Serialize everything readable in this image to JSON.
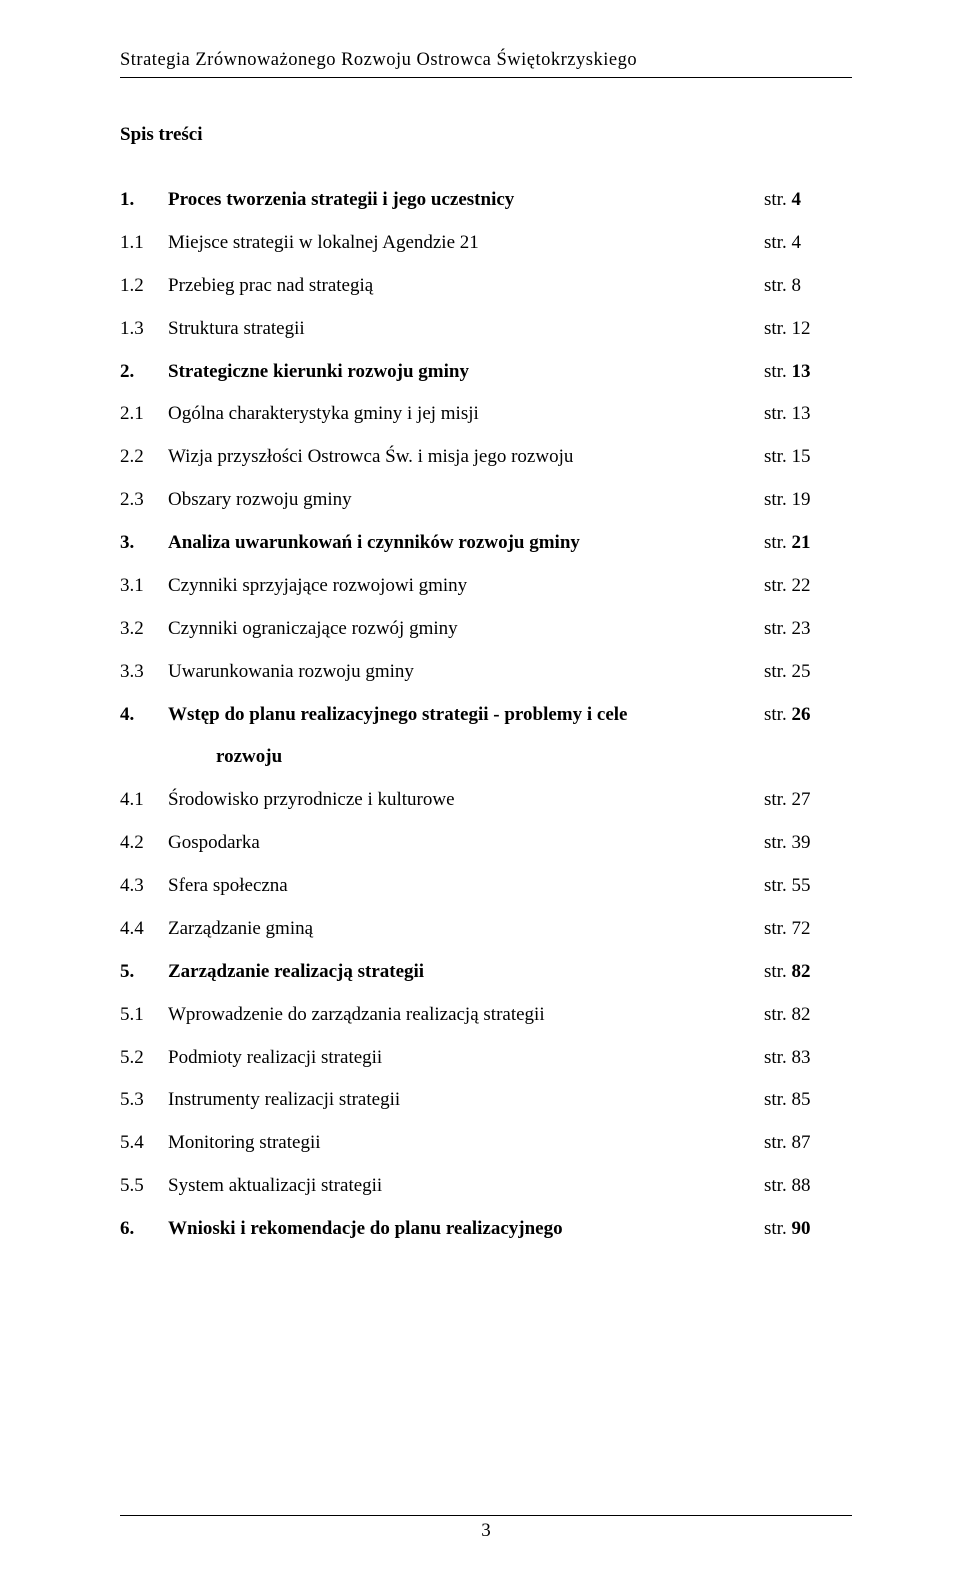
{
  "header": "Strategia Zrównoważonego Rozwoju Ostrowca Świętokrzyskiego",
  "toc_title": "Spis treści",
  "page_prefix": "str.",
  "footer_page": "3",
  "toc": [
    {
      "num": "1.",
      "title": "Proces tworzenia strategii i jego uczestnicy",
      "page": "4",
      "bold": true
    },
    {
      "num": "1.1",
      "title": "Miejsce strategii w lokalnej Agendzie 21",
      "page": "4",
      "bold": false
    },
    {
      "num": "1.2",
      "title": "Przebieg prac nad strategią",
      "page": "8",
      "bold": false
    },
    {
      "num": "1.3",
      "title": "Struktura strategii",
      "page": "12",
      "bold": false
    },
    {
      "num": "2.",
      "title": "Strategiczne kierunki rozwoju gminy",
      "page": "13",
      "bold": true
    },
    {
      "num": "2.1",
      "title": "Ogólna charakterystyka gminy i jej misji",
      "page": "13",
      "bold": false
    },
    {
      "num": "2.2",
      "title": "Wizja przyszłości Ostrowca Św. i misja jego rozwoju",
      "page": "15",
      "bold": false
    },
    {
      "num": "2.3",
      "title": "Obszary rozwoju gminy",
      "page": "19",
      "bold": false
    },
    {
      "num": "3.",
      "title": "Analiza uwarunkowań i czynników rozwoju gminy",
      "page": "21",
      "bold": true
    },
    {
      "num": "3.1",
      "title": "Czynniki sprzyjające rozwojowi gminy",
      "page": "22",
      "bold": false
    },
    {
      "num": "3.2",
      "title": "Czynniki ograniczające rozwój gminy",
      "page": "23",
      "bold": false
    },
    {
      "num": "3.3",
      "title": "Uwarunkowania rozwoju gminy",
      "page": "25",
      "bold": false
    },
    {
      "num": "4.",
      "title": "Wstęp do planu realizacyjnego strategii - problemy i cele",
      "page": "26",
      "bold": true,
      "cont": "rozwoju"
    },
    {
      "num": "4.1",
      "title": "Środowisko przyrodnicze i kulturowe",
      "page": "27",
      "bold": false
    },
    {
      "num": "4.2",
      "title": "Gospodarka",
      "page": "39",
      "bold": false
    },
    {
      "num": "4.3",
      "title": "Sfera społeczna",
      "page": "55",
      "bold": false
    },
    {
      "num": "4.4",
      "title": "Zarządzanie gminą",
      "page": "72",
      "bold": false
    },
    {
      "num": "5.",
      "title": "Zarządzanie realizacją strategii",
      "page": "82",
      "bold": true
    },
    {
      "num": "5.1",
      "title": "Wprowadzenie do zarządzania realizacją strategii",
      "page": "82",
      "bold": false
    },
    {
      "num": "5.2",
      "title": "Podmioty realizacji strategii",
      "page": "83",
      "bold": false
    },
    {
      "num": "5.3",
      "title": "Instrumenty realizacji strategii",
      "page": "85",
      "bold": false
    },
    {
      "num": "5.4",
      "title": "Monitoring strategii",
      "page": "87",
      "bold": false
    },
    {
      "num": "5.5",
      "title": "System aktualizacji strategii",
      "page": "88",
      "bold": false
    },
    {
      "num": "6.",
      "title": "Wnioski i rekomendacje do planu realizacyjnego",
      "page": "90",
      "bold": true
    }
  ]
}
